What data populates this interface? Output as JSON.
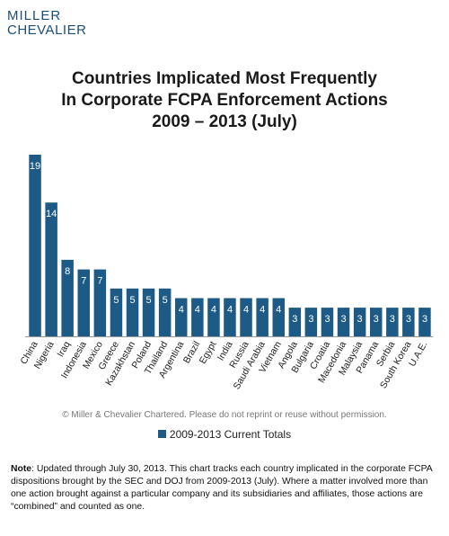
{
  "logo": {
    "line1": "MILLER",
    "line2": "CHEVALIER"
  },
  "chart_data": {
    "type": "bar",
    "title": [
      "Countries Implicated Most Frequently",
      "In Corporate FCPA Enforcement Actions",
      "2009 – 2013 (July)"
    ],
    "categories": [
      "China",
      "Nigeria",
      "Iraq",
      "Indonesia",
      "Mexico",
      "Greece",
      "Kazakhstan",
      "Poland",
      "Thailand",
      "Argentina",
      "Brazil",
      "Egypt",
      "India",
      "Russia",
      "Saudi Arabia",
      "Vietnam",
      "Angola",
      "Bulgaria",
      "Croatia",
      "Macedonia",
      "Malaysia",
      "Panama",
      "Serbia",
      "South Korea",
      "U.A.E."
    ],
    "series": [
      {
        "name": "2009-2013 Current Totals",
        "values": [
          19,
          14,
          8,
          7,
          7,
          5,
          5,
          5,
          5,
          4,
          4,
          4,
          4,
          4,
          4,
          4,
          3,
          3,
          3,
          3,
          3,
          3,
          3,
          3,
          3
        ]
      }
    ],
    "ylim": [
      0,
      19
    ],
    "grid": false,
    "legend_position": "bottom",
    "bar_color": "#1d5b86",
    "label_color": "#ffffff"
  },
  "copyright": "© Miller & Chevalier Chartered. Please do not reprint or reuse without permission.",
  "note": {
    "label": "Note",
    "text": ": Updated through July 30, 2013. This chart tracks each country implicated in the corporate FCPA dispositions  brought  by the SEC and DOJ from 2009-2013 (July).  Where  a matter involved more than one action brought against a particular company and its subsidiaries and affiliates, those actions are “combined” and counted as one."
  }
}
